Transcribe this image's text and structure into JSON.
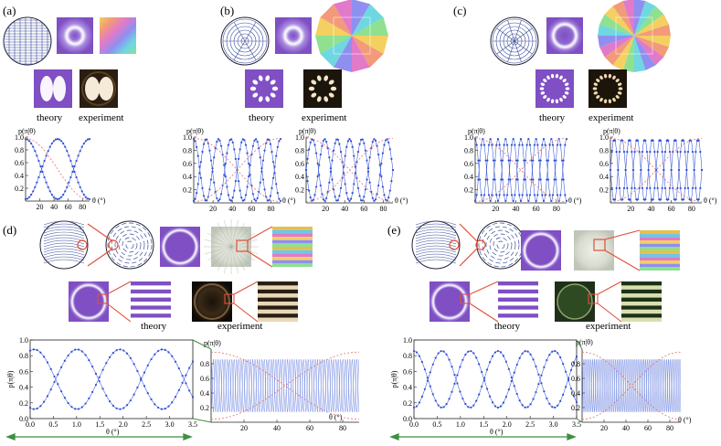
{
  "panels": {
    "a": {
      "label": "(a)",
      "theory": "theory",
      "experiment": "experiment"
    },
    "b": {
      "label": "(b)",
      "theory": "theory",
      "experiment": "experiment"
    },
    "c": {
      "label": "(c)",
      "theory": "theory",
      "experiment": "experiment"
    },
    "d": {
      "label": "(d)",
      "theory": "theory",
      "experiment": "experiment"
    },
    "e": {
      "label": "(e)",
      "theory": "theory",
      "experiment": "experiment"
    }
  },
  "axis": {
    "ylabel_top": "p^C_{\\Psi}(\\pi|\\theta)",
    "ylabel_side": "p^C_{\\Psi}(\\pi|\\theta)",
    "xlabel_deg": "θ (°)",
    "xlabel_small": "θ (°)",
    "xlabel_small_d": "θ (°)"
  },
  "colors": {
    "purple": "#7f4fc3",
    "blue_series": "#2f4fd4",
    "red_series": "#e07070",
    "arrow_green": "#3f8f3f",
    "zoom_red": "#e0503a"
  },
  "chart_data": [
    {
      "type": "line",
      "id": "a",
      "x_range": [
        0,
        90
      ],
      "ylim": [
        0,
        1
      ],
      "xticks": [
        20,
        40,
        60,
        80
      ],
      "yticks": [
        0.2,
        0.4,
        0.6,
        0.8,
        1.0
      ],
      "series": [
        {
          "values_fn": "cos2(2θ)"
        },
        {
          "values_fn": "sin2(2θ)"
        }
      ]
    },
    {
      "type": "line",
      "id": "b1",
      "x_range": [
        0,
        90
      ],
      "ylim": [
        0,
        1
      ],
      "xticks": [
        20,
        40,
        60,
        80
      ],
      "yticks": [
        0.2,
        0.4,
        0.6,
        0.8,
        1.0
      ]
    },
    {
      "type": "line",
      "id": "b2",
      "x_range": [
        0,
        90
      ],
      "ylim": [
        0,
        1
      ],
      "xticks": [
        20,
        40,
        60,
        80
      ],
      "yticks": [
        0.2,
        0.4,
        0.6,
        0.8,
        1.0
      ]
    },
    {
      "type": "line",
      "id": "c1",
      "x_range": [
        0,
        90
      ],
      "ylim": [
        0,
        1
      ],
      "xticks": [
        20,
        40,
        60,
        80
      ],
      "yticks": [
        0.2,
        0.4,
        0.6,
        0.8,
        1.0
      ]
    },
    {
      "type": "line",
      "id": "c2",
      "x_range": [
        0,
        90
      ],
      "ylim": [
        0,
        1
      ],
      "xticks": [
        20,
        40,
        60,
        80
      ],
      "yticks": [
        0.2,
        0.4,
        0.6,
        0.8,
        1.0
      ]
    },
    {
      "type": "line",
      "id": "d-zoom",
      "x_range": [
        0,
        3.5
      ],
      "ylim": [
        0,
        1
      ],
      "xticks": [
        0.0,
        0.5,
        1.0,
        1.5,
        2.0,
        2.5,
        3.0,
        3.5
      ],
      "yticks": [
        0.0,
        0.2,
        0.4,
        0.6,
        0.8,
        1.0
      ]
    },
    {
      "type": "line",
      "id": "d-full",
      "x_range": [
        0,
        90
      ],
      "ylim": [
        0,
        1
      ],
      "xticks": [
        20,
        40,
        60,
        80
      ],
      "yticks": [
        0.2,
        0.4,
        0.6,
        0.8
      ]
    },
    {
      "type": "line",
      "id": "e-zoom",
      "x_range": [
        0,
        3.5
      ],
      "ylim": [
        0,
        1
      ],
      "xticks": [
        0.0,
        0.5,
        1.0,
        1.5,
        2.0,
        2.5,
        3.0,
        3.5
      ],
      "yticks": [
        0.0,
        0.2,
        0.4,
        0.6,
        0.8,
        1.0
      ]
    },
    {
      "type": "line",
      "id": "e-full",
      "x_range": [
        0,
        90
      ],
      "ylim": [
        0,
        1
      ],
      "xticks": [
        20,
        40,
        60,
        80
      ],
      "yticks": [
        0.2,
        0.4,
        0.6,
        0.8
      ]
    }
  ]
}
